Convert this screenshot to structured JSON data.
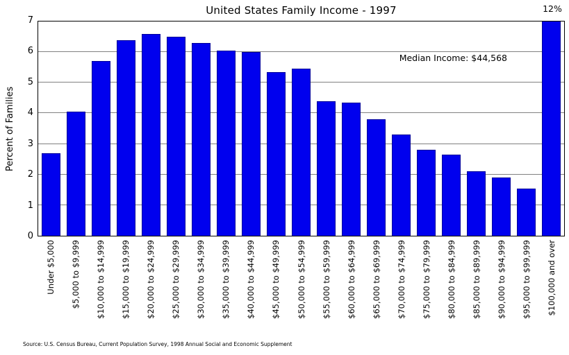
{
  "chart_data": {
    "type": "bar",
    "title": "United States Family Income - 1997",
    "ylabel": "Percent of Families",
    "xlabel": "",
    "ylim": [
      0,
      7
    ],
    "yticks": [
      0,
      1,
      2,
      3,
      4,
      5,
      6,
      7
    ],
    "grid": "horizontal",
    "legend": "none",
    "bar_color": "#0000ee",
    "bar_edge_color": "#000099",
    "grid_color": "#808080",
    "categories": [
      "Under $5,000",
      "$5,000 to $9,999",
      "$10,000 to $14,999",
      "$15,000 to $19,999",
      "$20,000 to $24,999",
      "$25,000 to $29,999",
      "$30,000 to $34,999",
      "$35,000 to $39,999",
      "$40,000 to $44,999",
      "$45,000 to $49,999",
      "$50,000 to $54,999",
      "$55,000 to $59,999",
      "$60,000 to $64,999",
      "$65,000 to $69,999",
      "$70,000 to $74,999",
      "$75,000 to $79,999",
      "$80,000 to $84,999",
      "$85,000 to $89,999",
      "$90,000 to $94,999",
      "$95,000 to $99,999",
      "$100,000 and over"
    ],
    "values": [
      2.7,
      4.05,
      5.7,
      6.4,
      6.6,
      6.5,
      6.3,
      6.05,
      6.0,
      5.35,
      5.45,
      4.4,
      4.35,
      3.8,
      3.3,
      2.8,
      2.65,
      2.1,
      1.9,
      1.55,
      12
    ],
    "clipped_at_ymax": "last bar (12%) drawn clipped at y=7",
    "annotations": {
      "median_income": "Median Income: $44,568",
      "last_bar_label": "12%"
    }
  },
  "source_note": "Source: U.S. Census Bureau, Current Population Survey, 1998 Annual Social and Economic Supplement"
}
